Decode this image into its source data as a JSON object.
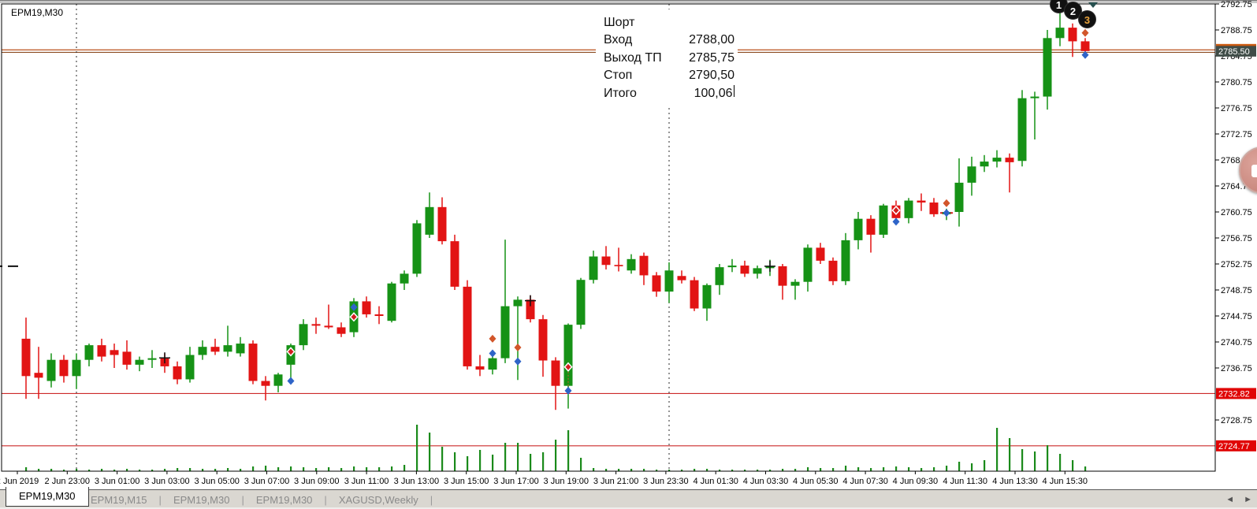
{
  "window": {
    "symbol_label": "EPM19,M30"
  },
  "trade_panel": {
    "rows": [
      {
        "label": "Шорт",
        "value": ""
      },
      {
        "label": "Вход",
        "value": "2788,00"
      },
      {
        "label": "Выход ТП",
        "value": "2785,75"
      },
      {
        "label": "Стоп",
        "value": "2790,50"
      },
      {
        "label": "Итого",
        "value": "100,06",
        "cursor": true
      }
    ]
  },
  "sequence_badges": [
    "1",
    "2",
    "3"
  ],
  "price_axis": {
    "ticks": [
      "2792.75",
      "2788.75",
      "2784.75",
      "2780.75",
      "2776.75",
      "2772.75",
      "2768.75",
      "2764.75",
      "2760.75",
      "2756.75",
      "2752.75",
      "2748.75",
      "2744.75",
      "2740.75",
      "2736.75",
      "2728.75"
    ],
    "current_badge": "2785.50",
    "line_badges": [
      "2732.82",
      "2724.77"
    ]
  },
  "time_axis": {
    "labels": [
      "2 Jun 2019",
      "2 Jun 23:00",
      "3 Jun 01:00",
      "3 Jun 03:00",
      "3 Jun 05:00",
      "3 Jun 07:00",
      "3 Jun 09:00",
      "3 Jun 11:00",
      "3 Jun 13:00",
      "3 Jun 15:00",
      "3 Jun 17:00",
      "3 Jun 19:00",
      "3 Jun 21:00",
      "3 Jun 23:30",
      "4 Jun 01:30",
      "4 Jun 03:30",
      "4 Jun 05:30",
      "4 Jun 07:30",
      "4 Jun 09:30",
      "4 Jun 11:30",
      "4 Jun 13:30",
      "4 Jun 15:30"
    ]
  },
  "tabs": {
    "items": [
      {
        "label": "EPM19,M30",
        "active": true
      },
      {
        "label": "EPM19,M15",
        "active": false
      },
      {
        "label": "EPM19,M30",
        "active": false
      },
      {
        "label": "EPM19,M30",
        "active": false
      },
      {
        "label": "XAGUSD,Weekly",
        "active": false
      }
    ],
    "scroll_left": "◄",
    "scroll_right": "►"
  },
  "colors": {
    "bull": "#169216",
    "bear": "#e21414",
    "volume": "#1a8a1a",
    "stop_line": "#cc2a2a",
    "stop_badge": "#e00505",
    "current_line_top": "#c06030",
    "current_line_bottom": "#8a4a20",
    "current_badge_bg": "#3f4c47",
    "current_badge_accent": "#cc5a10",
    "buy_marker": "#2e64c8",
    "sell_marker": "#d2562a",
    "signal_marker": "#d21e1e"
  },
  "chart_data": {
    "type": "candlestick",
    "symbol": "EPM19",
    "timeframe": "M30",
    "y_range": [
      2720.9,
      2793.35
    ],
    "price_lines": {
      "current": 2785.5,
      "stop_levels": [
        2732.82,
        2724.77
      ]
    },
    "separators_x": [
      97,
      849
    ],
    "left_dash_price": 2752.4,
    "candles": [
      [
        2741.25,
        2744.5,
        2732.0,
        2735.5,
        5
      ],
      [
        2736.0,
        2740.0,
        2732.0,
        2735.25,
        3
      ],
      [
        2734.75,
        2739.0,
        2733.75,
        2738.0,
        3
      ],
      [
        2738.0,
        2738.75,
        2734.5,
        2735.5,
        2
      ],
      [
        2735.5,
        2739.0,
        2733.5,
        2738.0,
        3
      ],
      [
        2738.0,
        2740.5,
        2737.0,
        2740.25,
        2
      ],
      [
        2740.25,
        2741.25,
        2737.75,
        2738.5,
        3
      ],
      [
        2739.5,
        2740.5,
        2736.75,
        2738.75,
        2
      ],
      [
        2739.25,
        2741.0,
        2736.5,
        2737.25,
        3
      ],
      [
        2737.25,
        2738.5,
        2736.25,
        2738.0,
        2
      ],
      [
        2738.0,
        2739.5,
        2736.75,
        2738.25,
        2
      ],
      [
        2738.25,
        2739.0,
        2736.0,
        2737.0,
        3
      ],
      [
        2737.0,
        2737.75,
        2734.25,
        2735.0,
        4
      ],
      [
        2735.0,
        2740.0,
        2734.5,
        2738.75,
        4
      ],
      [
        2738.75,
        2741.0,
        2738.0,
        2740.0,
        3
      ],
      [
        2740.0,
        2741.25,
        2738.75,
        2739.25,
        3
      ],
      [
        2739.25,
        2743.25,
        2738.5,
        2740.25,
        4
      ],
      [
        2739.0,
        2741.5,
        2738.5,
        2740.5,
        3
      ],
      [
        2740.5,
        2741.0,
        2734.25,
        2734.75,
        6
      ],
      [
        2734.75,
        2735.5,
        2731.75,
        2734.0,
        7
      ],
      [
        2734.0,
        2736.0,
        2733.0,
        2735.75,
        5
      ],
      [
        2737.25,
        2740.5,
        2734.5,
        2740.25,
        6
      ],
      [
        2740.25,
        2744.25,
        2739.5,
        2743.5,
        5
      ],
      [
        2743.5,
        2744.5,
        2742.0,
        2743.25,
        4
      ],
      [
        2743.25,
        2746.5,
        2742.75,
        2743.0,
        5
      ],
      [
        2743.0,
        2743.75,
        2741.5,
        2742.0,
        4
      ],
      [
        2742.25,
        2747.5,
        2741.5,
        2747.0,
        6
      ],
      [
        2747.0,
        2747.75,
        2744.5,
        2745.0,
        5
      ],
      [
        2745.0,
        2746.25,
        2743.5,
        2744.75,
        5
      ],
      [
        2744.0,
        2750.0,
        2743.75,
        2749.75,
        6
      ],
      [
        2749.75,
        2751.75,
        2748.75,
        2751.25,
        8
      ],
      [
        2751.25,
        2759.5,
        2750.75,
        2759.0,
        59
      ],
      [
        2757.25,
        2763.75,
        2756.75,
        2761.5,
        49
      ],
      [
        2761.5,
        2763.0,
        2755.75,
        2756.25,
        31
      ],
      [
        2756.25,
        2757.25,
        2748.75,
        2749.25,
        24
      ],
      [
        2749.25,
        2750.25,
        2736.5,
        2737.0,
        19
      ],
      [
        2737.0,
        2738.75,
        2735.5,
        2736.5,
        27
      ],
      [
        2736.5,
        2739.25,
        2735.75,
        2738.25,
        21
      ],
      [
        2738.25,
        2756.5,
        2737.5,
        2746.25,
        36
      ],
      [
        2746.25,
        2747.75,
        2734.9,
        2747.25,
        36
      ],
      [
        2747.25,
        2747.9,
        2743.75,
        2744.25,
        22
      ],
      [
        2744.25,
        2744.9,
        2735.4,
        2737.9,
        24
      ],
      [
        2737.9,
        2738.4,
        2730.3,
        2734.0,
        40
      ],
      [
        2734.0,
        2743.6,
        2730.5,
        2743.4,
        52
      ],
      [
        2743.4,
        2750.6,
        2742.75,
        2750.3,
        17
      ],
      [
        2750.3,
        2754.8,
        2749.75,
        2753.9,
        4
      ],
      [
        2753.9,
        2755.5,
        2751.9,
        2752.6,
        3
      ],
      [
        2752.6,
        2755.25,
        2751.6,
        2752.4,
        3
      ],
      [
        2751.75,
        2754.25,
        2751.25,
        2753.5,
        3
      ],
      [
        2754.0,
        2754.5,
        2749.5,
        2751.0,
        3
      ],
      [
        2751.0,
        2751.5,
        2747.7,
        2748.5,
        2
      ],
      [
        2748.5,
        2753.0,
        2746.75,
        2751.75,
        2
      ],
      [
        2750.9,
        2751.75,
        2749.75,
        2750.25,
        2
      ],
      [
        2750.25,
        2750.75,
        2745.5,
        2745.9,
        3
      ],
      [
        2745.9,
        2749.75,
        2744.0,
        2749.5,
        3
      ],
      [
        2749.5,
        2752.75,
        2748.0,
        2752.25,
        2
      ],
      [
        2752.25,
        2753.5,
        2751.5,
        2752.5,
        2
      ],
      [
        2752.5,
        2753.25,
        2750.75,
        2751.25,
        2
      ],
      [
        2751.25,
        2752.5,
        2750.5,
        2752.1,
        2
      ],
      [
        2752.1,
        2753.4,
        2750.9,
        2752.4,
        2
      ],
      [
        2752.4,
        2752.75,
        2747.25,
        2749.4,
        3
      ],
      [
        2749.4,
        2750.4,
        2747.25,
        2750.0,
        3
      ],
      [
        2750.0,
        2755.75,
        2748.5,
        2755.25,
        5
      ],
      [
        2755.25,
        2756.0,
        2752.75,
        2753.25,
        4
      ],
      [
        2753.25,
        2753.75,
        2749.5,
        2750.1,
        4
      ],
      [
        2750.1,
        2757.5,
        2749.5,
        2756.4,
        7
      ],
      [
        2756.4,
        2760.75,
        2755.0,
        2759.7,
        5
      ],
      [
        2759.7,
        2760.25,
        2754.5,
        2757.25,
        4
      ],
      [
        2757.25,
        2762.0,
        2756.75,
        2761.75,
        5
      ],
      [
        2761.75,
        2762.5,
        2759.25,
        2759.8,
        6
      ],
      [
        2759.8,
        2762.9,
        2759.0,
        2762.5,
        5
      ],
      [
        2762.5,
        2763.6,
        2760.9,
        2762.2,
        4
      ],
      [
        2762.2,
        2762.9,
        2760.0,
        2760.4,
        5
      ],
      [
        2760.4,
        2761.25,
        2759.5,
        2760.75,
        7
      ],
      [
        2760.75,
        2769.0,
        2758.5,
        2765.25,
        12
      ],
      [
        2765.25,
        2769.25,
        2763.25,
        2767.75,
        10
      ],
      [
        2767.75,
        2769.5,
        2766.9,
        2768.5,
        14
      ],
      [
        2768.5,
        2770.25,
        2767.6,
        2769.1,
        55
      ],
      [
        2769.1,
        2769.75,
        2763.75,
        2768.4,
        42
      ],
      [
        2768.6,
        2779.5,
        2767.75,
        2778.25,
        28
      ],
      [
        2778.25,
        2779.25,
        2771.9,
        2778.5,
        25
      ],
      [
        2778.5,
        2788.75,
        2776.5,
        2787.5,
        33
      ],
      [
        2787.5,
        2791.9,
        2786.25,
        2789.1,
        22
      ],
      [
        2789.1,
        2789.75,
        2784.6,
        2787.0,
        14
      ],
      [
        2787.0,
        2787.5,
        2784.6,
        2785.5,
        6
      ]
    ],
    "markers": [
      {
        "i": 21,
        "t": "sell2",
        "p": 2739.25
      },
      {
        "i": 21,
        "t": "buy",
        "p": 2734.75
      },
      {
        "i": 26,
        "t": "buy",
        "p": 2746.1
      },
      {
        "i": 26,
        "t": "sell2",
        "p": 2744.6
      },
      {
        "i": 37,
        "t": "sell",
        "p": 2741.25
      },
      {
        "i": 37,
        "t": "buy",
        "p": 2739.0
      },
      {
        "i": 39,
        "t": "sell",
        "p": 2739.9
      },
      {
        "i": 39,
        "t": "buy",
        "p": 2737.75
      },
      {
        "i": 43,
        "t": "sell2",
        "p": 2736.9,
        "tail": true
      },
      {
        "i": 43,
        "t": "buy",
        "p": 2733.25
      },
      {
        "i": 69,
        "t": "sell2",
        "p": 2761.0
      },
      {
        "i": 69,
        "t": "buy",
        "p": 2759.25
      },
      {
        "i": 73,
        "t": "sell",
        "p": 2762.1
      },
      {
        "i": 73,
        "t": "buy",
        "p": 2760.6,
        "bracket": true
      },
      {
        "i": 84,
        "t": "sell",
        "p": 2788.3
      },
      {
        "i": 84,
        "t": "buy",
        "p": 2784.9
      }
    ],
    "crosses": [
      {
        "i": 11,
        "p": 2738.3
      },
      {
        "i": 40,
        "p": 2747.1
      },
      {
        "i": 59,
        "p": 2752.4
      }
    ]
  }
}
